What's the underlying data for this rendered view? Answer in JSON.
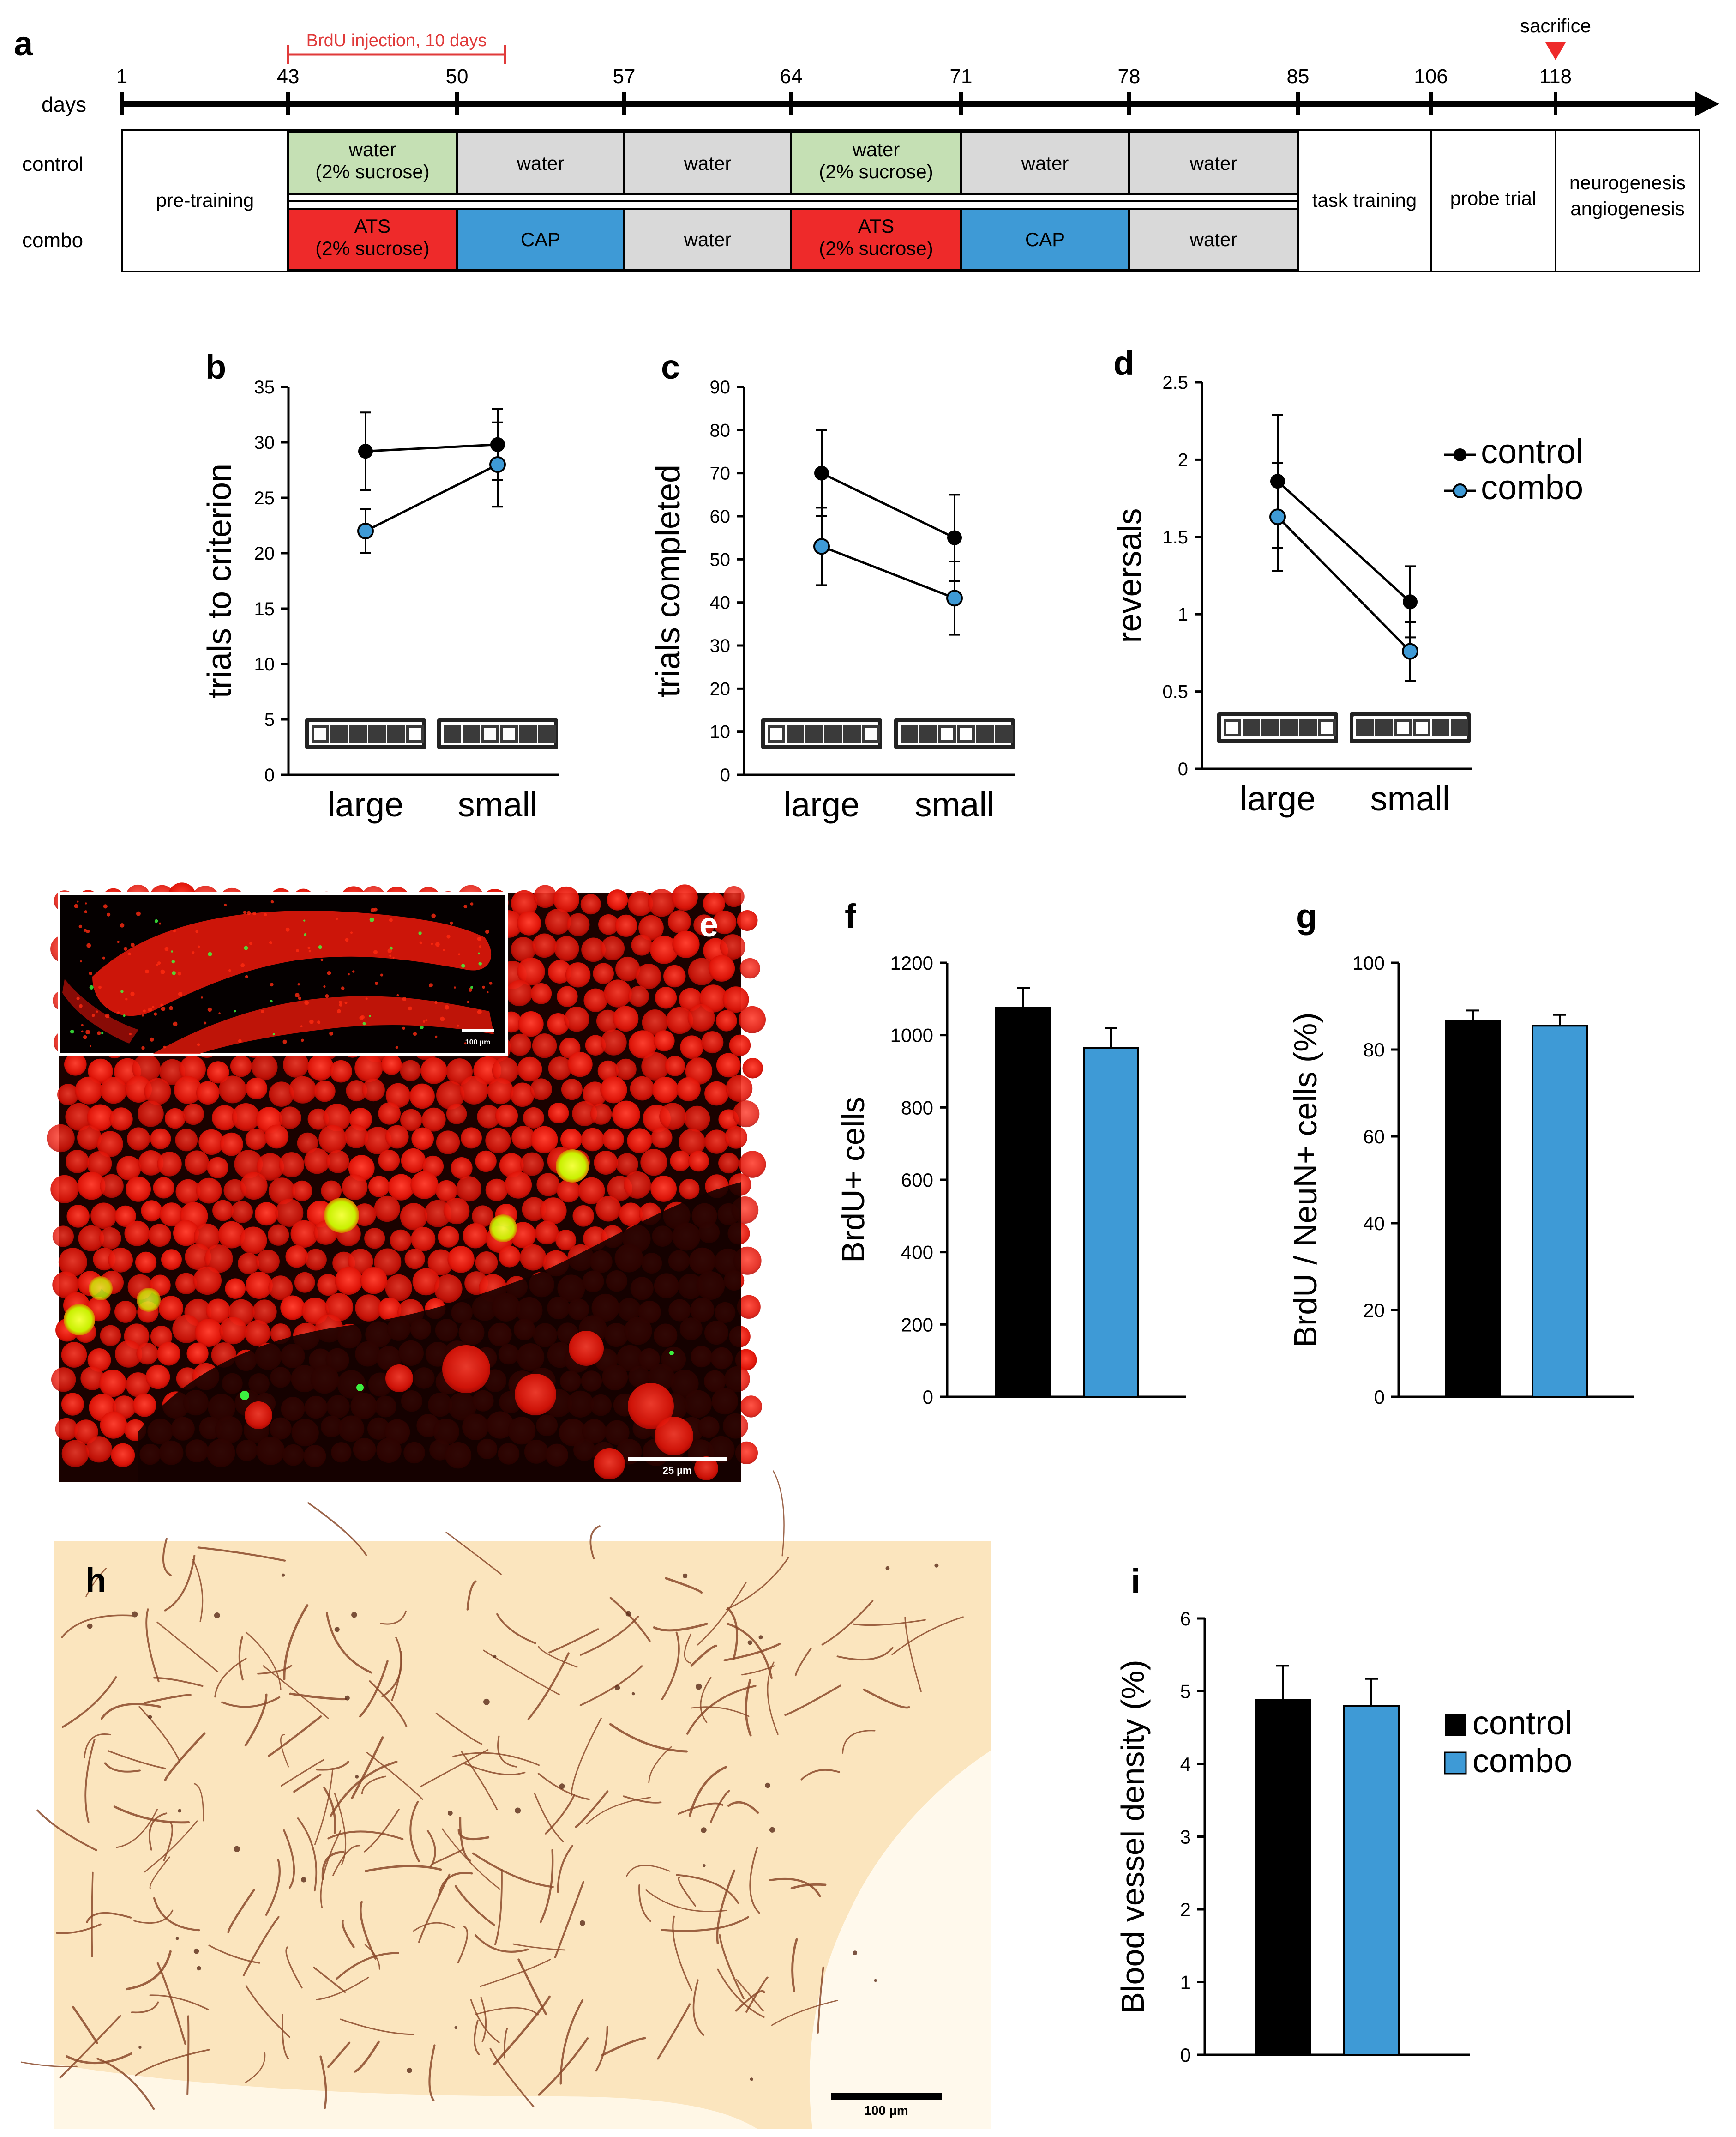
{
  "panel_labels": {
    "a": "a",
    "b": "b",
    "c": "c",
    "d": "d",
    "e": "e",
    "f": "f",
    "g": "g",
    "h": "h",
    "i": "i"
  },
  "timeline": {
    "days_label": "days",
    "ticks": [
      "1",
      "43",
      "50",
      "57",
      "64",
      "71",
      "78",
      "85",
      "106",
      "118"
    ],
    "brdu_label": "BrdU injection, 10 days",
    "sacrifice_label": "sacrifice",
    "row_labels": {
      "control": "control",
      "combo": "combo"
    },
    "pre_training": "pre-training",
    "control_cells": [
      {
        "line1": "water",
        "line2": "(2% sucrose)",
        "color": "#c5e0b4"
      },
      {
        "line1": "water",
        "line2": "",
        "color": "#d9d9d9"
      },
      {
        "line1": "water",
        "line2": "",
        "color": "#d9d9d9"
      },
      {
        "line1": "water",
        "line2": "(2% sucrose)",
        "color": "#c5e0b4"
      },
      {
        "line1": "water",
        "line2": "",
        "color": "#d9d9d9"
      },
      {
        "line1": "water",
        "line2": "",
        "color": "#d9d9d9"
      }
    ],
    "combo_cells": [
      {
        "line1": "ATS",
        "line2": "(2% sucrose)",
        "color": "#ee2a2a"
      },
      {
        "line1": "CAP",
        "line2": "",
        "color": "#3e9ad6"
      },
      {
        "line1": "water",
        "line2": "",
        "color": "#d9d9d9"
      },
      {
        "line1": "ATS",
        "line2": "(2% sucrose)",
        "color": "#ee2a2a"
      },
      {
        "line1": "CAP",
        "line2": "",
        "color": "#3e9ad6"
      },
      {
        "line1": "water",
        "line2": "",
        "color": "#d9d9d9"
      }
    ],
    "task_training": "task training",
    "probe_trial": "probe trial",
    "neuro_line1": "neurogenesis",
    "neuro_line2": "angiogenesis"
  },
  "legend": {
    "control": "control",
    "combo": "combo"
  },
  "colors": {
    "control": "#000000",
    "combo": "#3e9ad6"
  },
  "chart_data": [
    {
      "panel": "b",
      "type": "line",
      "categories": [
        "large",
        "small"
      ],
      "ylabel": "trials to criterion",
      "ylim": [
        0,
        35
      ],
      "yticks": [
        0,
        5,
        10,
        15,
        20,
        25,
        30,
        35
      ],
      "series": [
        {
          "name": "control",
          "values": [
            29.2,
            29.8
          ],
          "errors": [
            3.5,
            3.2
          ]
        },
        {
          "name": "combo",
          "values": [
            22.0,
            28.0
          ],
          "errors": [
            2.0,
            3.8
          ]
        }
      ]
    },
    {
      "panel": "c",
      "type": "line",
      "categories": [
        "large",
        "small"
      ],
      "ylabel": "trials completed",
      "ylim": [
        0,
        90
      ],
      "yticks": [
        0,
        10,
        20,
        30,
        40,
        50,
        60,
        70,
        80,
        90
      ],
      "series": [
        {
          "name": "control",
          "values": [
            70,
            55
          ],
          "errors": [
            10,
            10
          ]
        },
        {
          "name": "combo",
          "values": [
            53,
            41
          ],
          "errors": [
            9,
            8.5
          ]
        }
      ]
    },
    {
      "panel": "d",
      "type": "line",
      "categories": [
        "large",
        "small"
      ],
      "ylabel": "reversals",
      "ylim": [
        0,
        2.5
      ],
      "yticks": [
        "0",
        "0.5",
        "1",
        "1.5",
        "2",
        "2.5"
      ],
      "series": [
        {
          "name": "control",
          "values": [
            1.86,
            1.08
          ],
          "errors": [
            0.43,
            0.23
          ]
        },
        {
          "name": "combo",
          "values": [
            1.63,
            0.76
          ],
          "errors": [
            0.35,
            0.19
          ]
        }
      ]
    },
    {
      "panel": "f",
      "type": "bar",
      "categories": [
        "control",
        "combo"
      ],
      "ylabel": "BrdU+ cells",
      "ylim": [
        0,
        1200
      ],
      "yticks": [
        0,
        200,
        400,
        600,
        800,
        1000,
        1200
      ],
      "values": [
        1075,
        965
      ],
      "errors": [
        55,
        55
      ]
    },
    {
      "panel": "g",
      "type": "bar",
      "categories": [
        "control",
        "combo"
      ],
      "ylabel": "BrdU / NeuN+ cells (%)",
      "ylim": [
        0,
        100
      ],
      "yticks": [
        0,
        20,
        40,
        60,
        80,
        100
      ],
      "values": [
        86.5,
        85.5
      ],
      "errors": [
        2.5,
        2.5
      ]
    },
    {
      "panel": "i",
      "type": "bar",
      "categories": [
        "control",
        "combo"
      ],
      "ylabel": "Blood vessel density (%)",
      "ylim": [
        0,
        6
      ],
      "yticks": [
        0,
        1,
        2,
        3,
        4,
        5,
        6
      ],
      "values": [
        4.88,
        4.8
      ],
      "errors": [
        0.47,
        0.37
      ]
    }
  ],
  "scale_bars": {
    "e_inset": "100 µm",
    "e_main": "25 µm",
    "h": "100 µm"
  }
}
